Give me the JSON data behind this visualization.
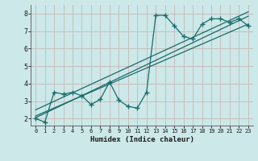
{
  "xlabel": "Humidex (Indice chaleur)",
  "bg_color": "#cce8e8",
  "line_color": "#1a6b6b",
  "grid_color": "#c8b8b8",
  "xlim": [
    -0.5,
    23.5
  ],
  "ylim": [
    1.6,
    8.5
  ],
  "xticks": [
    0,
    1,
    2,
    3,
    4,
    5,
    6,
    7,
    8,
    9,
    10,
    11,
    12,
    13,
    14,
    15,
    16,
    17,
    18,
    19,
    20,
    21,
    22,
    23
  ],
  "yticks": [
    2,
    3,
    4,
    5,
    6,
    7,
    8
  ],
  "line1_x": [
    0,
    1,
    2,
    3,
    4,
    5,
    6,
    7,
    8,
    9,
    10,
    11,
    12,
    13,
    14,
    15,
    16,
    17,
    18,
    19,
    20,
    21,
    22,
    23
  ],
  "line1_y": [
    2.0,
    1.8,
    3.5,
    3.4,
    3.5,
    3.3,
    2.8,
    3.1,
    4.1,
    3.05,
    2.7,
    2.6,
    3.5,
    7.9,
    7.9,
    7.3,
    6.7,
    6.55,
    7.4,
    7.7,
    7.7,
    7.5,
    7.7,
    7.3
  ],
  "line2_x": [
    0,
    23
  ],
  "line2_y": [
    2.05,
    7.85
  ],
  "line3_x": [
    0,
    23
  ],
  "line3_y": [
    2.15,
    7.4
  ],
  "line4_x": [
    0,
    23
  ],
  "line4_y": [
    2.5,
    8.1
  ]
}
